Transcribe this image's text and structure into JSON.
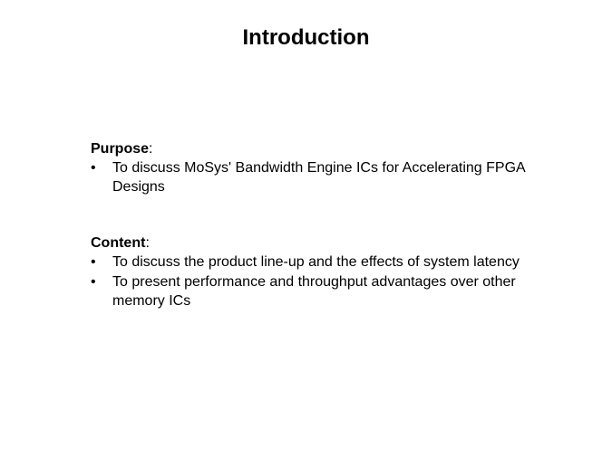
{
  "title": "Introduction",
  "sections": [
    {
      "label": "Purpose",
      "labelSuffix": ":",
      "bullets": [
        "To discuss MoSys' Bandwidth Engine ICs for Accelerating FPGA Designs"
      ]
    },
    {
      "label": "Content",
      "labelSuffix": ":",
      "bullets": [
        "To discuss the product line-up and the effects of system latency",
        "To present performance and throughput advantages over other memory ICs"
      ]
    }
  ],
  "styling": {
    "background_color": "#ffffff",
    "text_color": "#000000",
    "title_fontsize": 24,
    "body_fontsize": 16,
    "font_family": "Arial"
  }
}
